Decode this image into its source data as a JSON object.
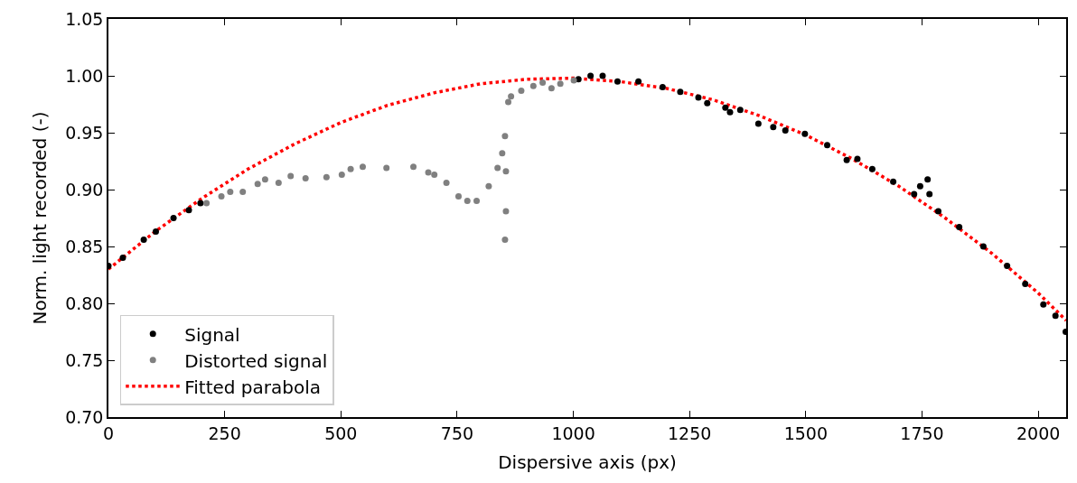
{
  "chart_data": {
    "type": "scatter",
    "xlabel": "Dispersive axis (px)",
    "ylabel": "Norm. light recorded (-)",
    "xlim": [
      0,
      2060
    ],
    "xticks": [
      0,
      250,
      500,
      750,
      1000,
      1250,
      1500,
      1750,
      2000
    ],
    "ylim": [
      0.7,
      1.05
    ],
    "yticks": [
      {
        "value": 0.7,
        "label": "0.70"
      },
      {
        "value": 0.75,
        "label": "0.75"
      },
      {
        "value": 0.8,
        "label": "0.80"
      },
      {
        "value": 0.85,
        "label": "0.85"
      },
      {
        "value": 0.9,
        "label": "0.90"
      },
      {
        "value": 0.95,
        "label": "0.95"
      },
      {
        "value": 1.0,
        "label": "1.00"
      },
      {
        "value": 1.05,
        "label": "1.05"
      }
    ],
    "grid": false,
    "legend": "bottom left",
    "marker": "circle",
    "series": [
      {
        "name": "Signal",
        "color": "#000000",
        "x": [
          0,
          31,
          76,
          102,
          140,
          173,
          198,
          null,
          1011,
          1037,
          1063,
          1095,
          1140,
          1192,
          1230,
          1269,
          1288,
          1327,
          1337,
          1359,
          1398,
          1430,
          1456,
          1498,
          1546,
          1588,
          1611,
          1643,
          1688,
          1733,
          1746,
          1762,
          1766,
          1785,
          1830,
          1882,
          1933,
          1972,
          2011,
          2037,
          2059
        ],
        "values": [
          0.833,
          0.84,
          0.856,
          0.863,
          0.875,
          0.882,
          0.888,
          null,
          0.997,
          1.0,
          1.0,
          0.995,
          0.995,
          0.99,
          0.986,
          0.981,
          0.976,
          0.972,
          0.968,
          0.97,
          0.958,
          0.955,
          0.952,
          0.949,
          0.939,
          0.926,
          0.927,
          0.918,
          0.907,
          0.896,
          0.903,
          0.909,
          0.896,
          0.881,
          0.867,
          0.85,
          0.833,
          0.817,
          0.799,
          0.789,
          0.775
        ]
      },
      {
        "name": "Distorted signal",
        "color": "#808080",
        "x": [
          211,
          243,
          262,
          289,
          321,
          337,
          366,
          392,
          424,
          469,
          502,
          521,
          547,
          598,
          656,
          688,
          701,
          727,
          753,
          772,
          792,
          818,
          837,
          847,
          853,
          855,
          855,
          853,
          860,
          866,
          888,
          914,
          934,
          953,
          972,
          1001
        ],
        "values": [
          0.888,
          0.894,
          0.898,
          0.898,
          0.905,
          0.909,
          0.906,
          0.912,
          0.91,
          0.911,
          0.913,
          0.918,
          0.92,
          0.919,
          0.92,
          0.915,
          0.913,
          0.906,
          0.894,
          0.89,
          0.89,
          0.903,
          0.919,
          0.932,
          0.947,
          0.916,
          0.881,
          0.856,
          0.977,
          0.982,
          0.987,
          0.991,
          0.994,
          0.989,
          0.993,
          0.996
        ]
      },
      {
        "name": "Fitted parabola",
        "color": "#ff0000",
        "type": "line",
        "marker": "none",
        "line_style": "dotted",
        "x": [
          0,
          100,
          200,
          300,
          400,
          500,
          600,
          700,
          800,
          900,
          1000,
          1100,
          1200,
          1300,
          1400,
          1500,
          1600,
          1700,
          1800,
          1900,
          2000,
          2060
        ],
        "values": [
          0.83,
          0.863,
          0.892,
          0.918,
          0.94,
          0.959,
          0.974,
          0.985,
          0.993,
          0.997,
          0.998,
          0.995,
          0.989,
          0.979,
          0.965,
          0.948,
          0.927,
          0.903,
          0.875,
          0.844,
          0.809,
          0.785
        ]
      }
    ]
  }
}
